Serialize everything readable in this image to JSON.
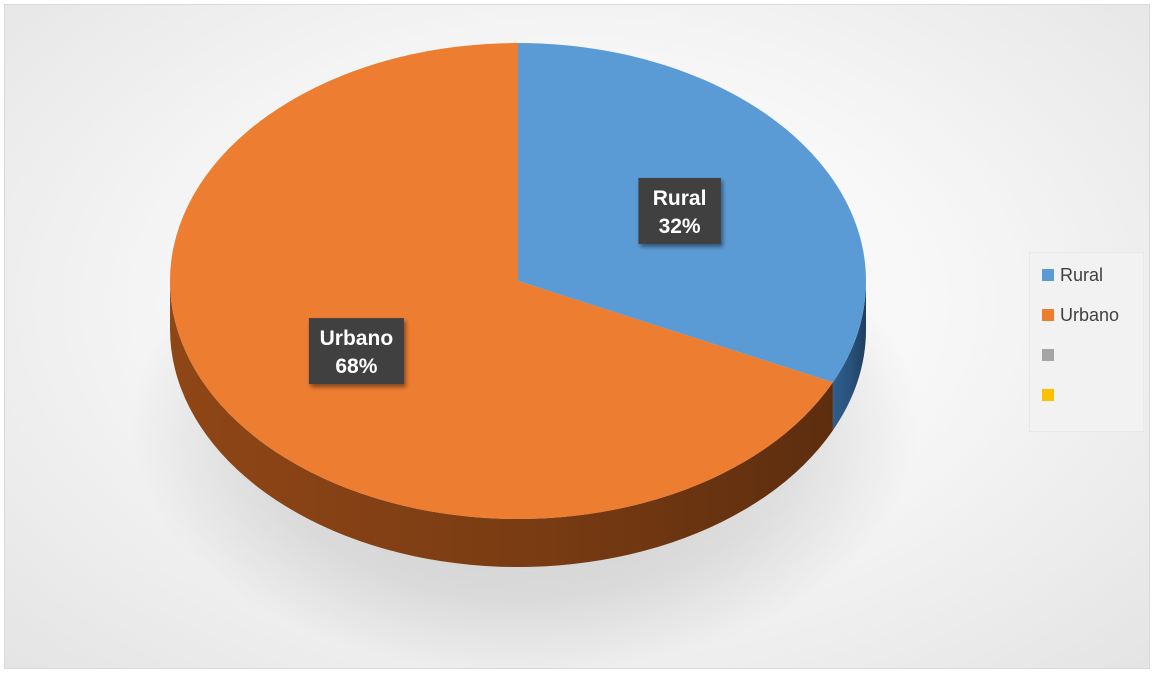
{
  "chart_data": {
    "type": "pie",
    "title": "",
    "slices": [
      {
        "label": "Rural",
        "value": 32,
        "percent_label": "32%",
        "color": "#5b9bd5",
        "side_color": "#2f5f8f"
      },
      {
        "label": "Urbano",
        "value": 68,
        "percent_label": "68%",
        "color": "#ed7d31",
        "side_color": "#8f4616"
      },
      {
        "label": "",
        "value": 0,
        "percent_label": "",
        "color": "#a5a5a5",
        "side_color": "#6e6e6e"
      },
      {
        "label": "",
        "value": 0,
        "percent_label": "",
        "color": "#ffc000",
        "side_color": "#a07800"
      }
    ],
    "legend_position": "right",
    "style": "3d-pie"
  }
}
